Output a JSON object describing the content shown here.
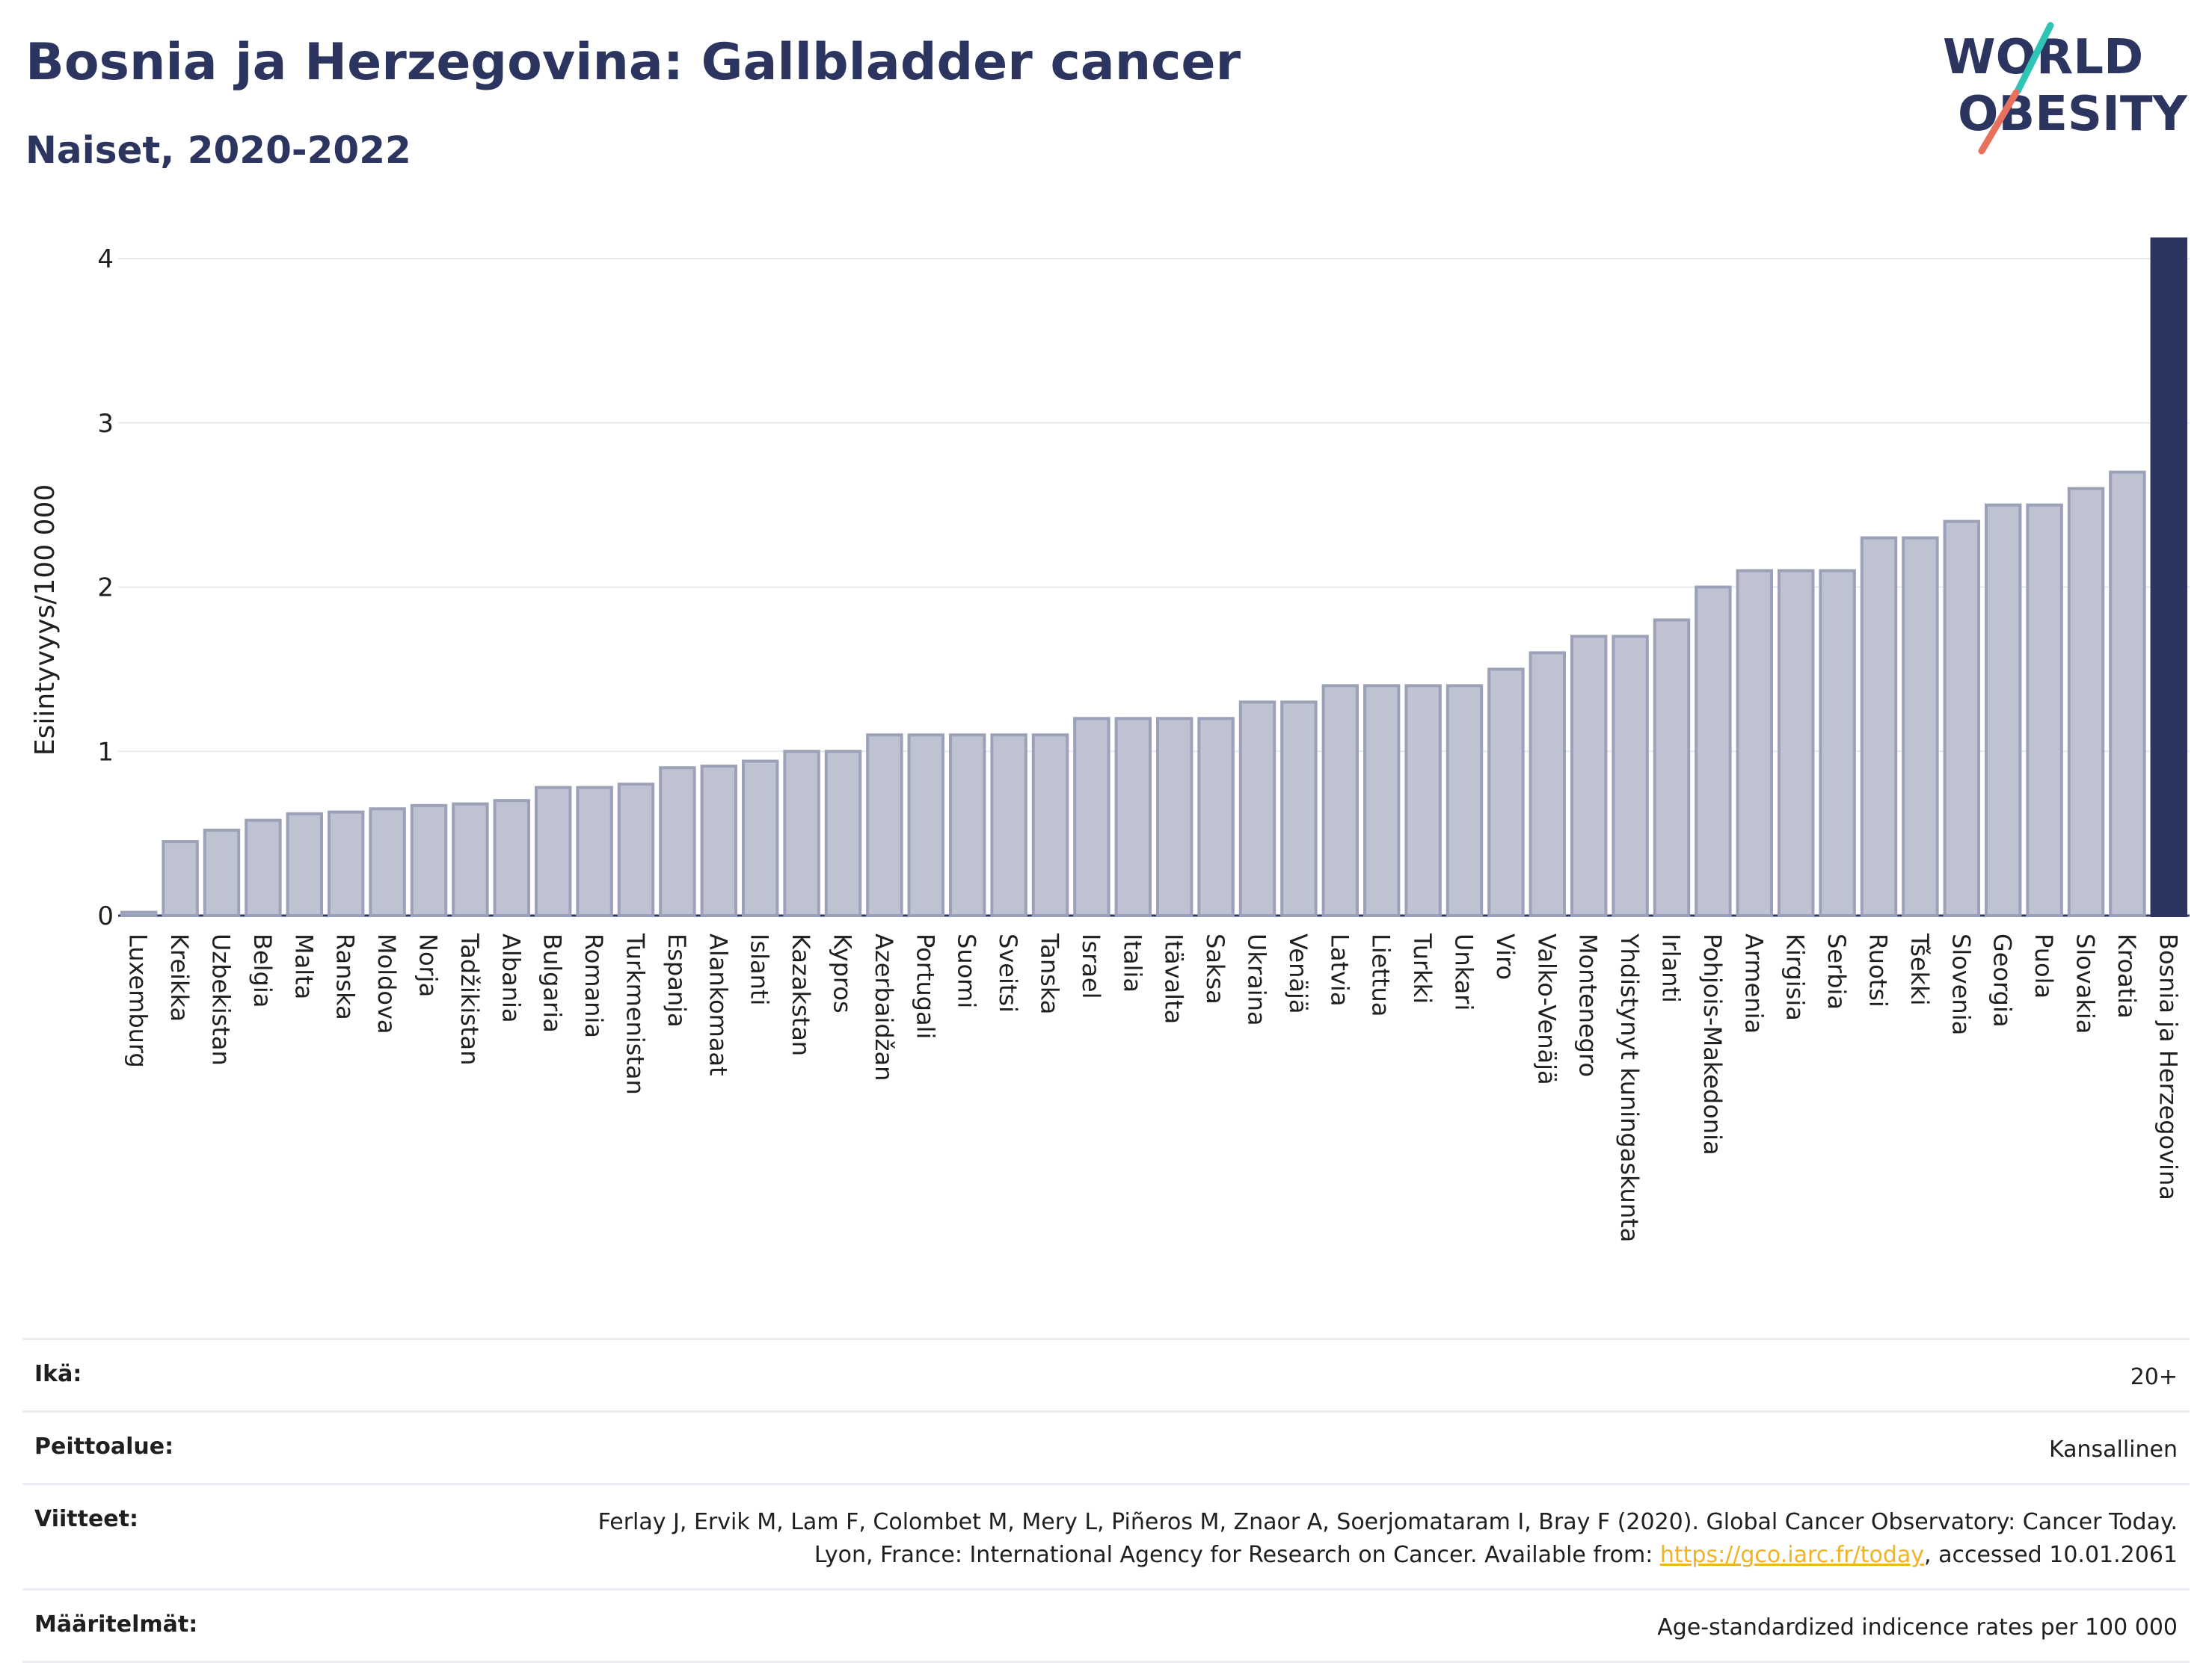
{
  "header": {
    "title": "Bosnia ja Herzegovina: Gallbladder cancer",
    "subtitle": "Naiset, 2020-2022",
    "logo_line1": "WORLD",
    "logo_line2": "OBESITY"
  },
  "colors": {
    "bar": "#bfc3d1",
    "bar_border": "#9ba1b8",
    "highlight": "#2b3560",
    "logo_slash_top": "#2ec4b6",
    "logo_slash_bottom": "#e8705e",
    "link": "#f0b323"
  },
  "chart_data": {
    "type": "bar",
    "title": "Bosnia ja Herzegovina: Gallbladder cancer",
    "subtitle": "Naiset, 2020-2022",
    "xlabel": "",
    "ylabel": "Esiintyvyys/100 000",
    "ylim": [
      0,
      4.2
    ],
    "yticks": [
      0,
      1,
      2,
      3,
      4
    ],
    "grid": true,
    "highlight_category": "Bosnia ja Herzegovina",
    "categories": [
      "Luxemburg",
      "Kreikka",
      "Uzbekistan",
      "Belgia",
      "Malta",
      "Ranska",
      "Moldova",
      "Norja",
      "Tadžikistan",
      "Albania",
      "Bulgaria",
      "Romania",
      "Turkmenistan",
      "Espanja",
      "Alankomaat",
      "Islanti",
      "Kazakstan",
      "Kypros",
      "Azerbaidžan",
      "Portugali",
      "Suomi",
      "Sveitsi",
      "Tanska",
      "Israel",
      "Italia",
      "Itävalta",
      "Saksa",
      "Ukraina",
      "Venäjä",
      "Latvia",
      "Liettua",
      "Turkki",
      "Unkari",
      "Viro",
      "Valko-Venäjä",
      "Montenegro",
      "Yhdistynyt kuningaskunta",
      "Irlanti",
      "Pohjois-Makedonia",
      "Armenia",
      "Kirgisia",
      "Serbia",
      "Ruotsi",
      "Tšekki",
      "Slovenia",
      "Georgia",
      "Puola",
      "Slovakia",
      "Kroatia",
      "Bosnia ja Herzegovina"
    ],
    "values": [
      0.02,
      0.45,
      0.52,
      0.58,
      0.62,
      0.63,
      0.65,
      0.67,
      0.68,
      0.7,
      0.78,
      0.78,
      0.8,
      0.9,
      0.91,
      0.94,
      1.0,
      1.0,
      1.1,
      1.1,
      1.1,
      1.1,
      1.1,
      1.2,
      1.2,
      1.2,
      1.2,
      1.3,
      1.3,
      1.4,
      1.4,
      1.4,
      1.4,
      1.5,
      1.6,
      1.7,
      1.7,
      1.8,
      2.0,
      2.1,
      2.1,
      2.1,
      2.3,
      2.3,
      2.4,
      2.5,
      2.5,
      2.6,
      2.7,
      4.12
    ]
  },
  "info": {
    "rows": [
      {
        "label": "Ikä:",
        "value": "20+"
      },
      {
        "label": "Peittoalue:",
        "value": "Kansallinen"
      },
      {
        "label": "Viitteet:",
        "value_pre": "Ferlay J, Ervik M, Lam F, Colombet M, Mery L, Piñeros M, Znaor A, Soerjomataram I, Bray F (2020). Global Cancer Observatory: Cancer Today. Lyon, France: International Agency for Research on Cancer. Available from: ",
        "link": "https://gco.iarc.fr/today",
        "value_post": ", accessed 10.01.2061"
      },
      {
        "label": "Määritelmät:",
        "value": "Age-standardized indicence rates per 100 000"
      }
    ]
  }
}
